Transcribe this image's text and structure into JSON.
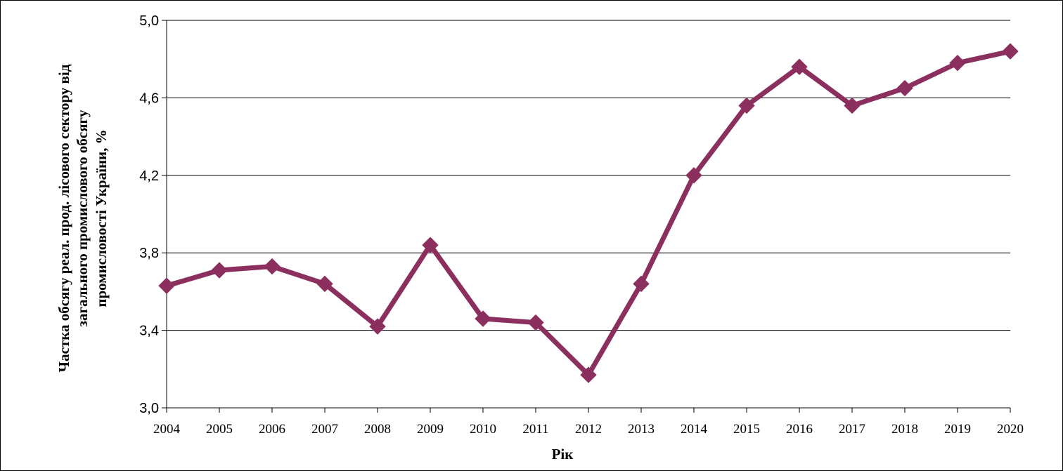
{
  "chart_data": {
    "type": "line",
    "title": "",
    "xlabel": "Рік",
    "ylabel_lines": [
      "Частка обсягу реал. прод. лісового сектору від",
      "загального промислового обсягу",
      "промисловості України, %"
    ],
    "x": [
      "2004",
      "2005",
      "2006",
      "2007",
      "2008",
      "2009",
      "2010",
      "2011",
      "2012",
      "2013",
      "2014",
      "2015",
      "2016",
      "2017",
      "2018",
      "2019",
      "2020"
    ],
    "series": [
      {
        "values": [
          3.63,
          3.71,
          3.73,
          3.64,
          3.42,
          3.84,
          3.46,
          3.44,
          3.17,
          3.64,
          4.2,
          4.56,
          4.76,
          4.56,
          4.65,
          4.78,
          4.84
        ]
      }
    ],
    "ylim": [
      3.0,
      5.0
    ],
    "yticks": [
      3.0,
      3.4,
      3.8,
      4.2,
      4.6,
      5.0
    ],
    "ytick_labels": [
      "3,0",
      "3,4",
      "3,8",
      "4,2",
      "4,6",
      "5,0"
    ],
    "grid": "horizontal",
    "legend": "none",
    "line_color": "#8B2F5E",
    "grid_color": "#000000"
  }
}
